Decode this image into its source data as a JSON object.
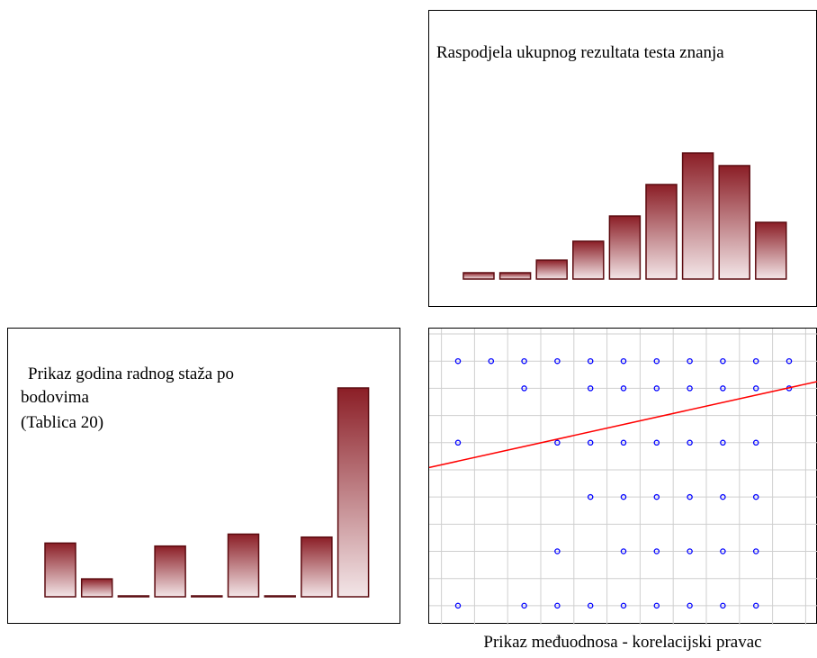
{
  "colors": {
    "bar_top": "#8b1e26",
    "bar_bottom": "#f3e6e8",
    "bar_stroke": "#5c0b10",
    "regression": "#ff0000",
    "points": "#0000ff",
    "grid": "#cfcfcf"
  },
  "chart_data": [
    {
      "id": "knowledge",
      "type": "bar",
      "title": "Raspodjela ukupnog rezultata testa znanja",
      "values": [
        1,
        1,
        3,
        6,
        10,
        15,
        20,
        18,
        9
      ],
      "ylim": [
        0,
        20
      ]
    },
    {
      "id": "experience",
      "type": "bar",
      "title_lines": [
        "Prikaz godina radnog staža po",
        "bodovima",
        "(Tablica 20)"
      ],
      "values": [
        18,
        6,
        0,
        17,
        0,
        21,
        0,
        20,
        70
      ],
      "ylim": [
        0,
        70
      ]
    },
    {
      "id": "correlation",
      "type": "scatter",
      "caption": "Prikaz međuodnosa - korelacijski pravac",
      "x_columns": [
        1,
        2,
        3,
        4,
        5,
        6,
        7,
        8,
        9,
        10,
        11
      ],
      "rows": [
        {
          "y": 9,
          "x": [
            1,
            2,
            3,
            4,
            5,
            6,
            7,
            8,
            9,
            10,
            11
          ]
        },
        {
          "y": 8,
          "x": [
            3,
            5,
            6,
            7,
            8,
            9,
            10,
            11
          ]
        },
        {
          "y": 6,
          "x": [
            1,
            4,
            5,
            6,
            7,
            8,
            9,
            10
          ]
        },
        {
          "y": 4,
          "x": [
            5,
            6,
            7,
            8,
            9,
            10
          ]
        },
        {
          "y": 2,
          "x": [
            4,
            6,
            7,
            8,
            9,
            10
          ]
        },
        {
          "y": 0,
          "x": [
            1,
            3,
            4,
            5,
            6,
            7,
            8,
            9,
            10
          ]
        }
      ],
      "regression": {
        "slope": 0.27,
        "intercept": 5.05
      },
      "xlim": [
        0,
        12
      ],
      "ylim": [
        -0.7,
        10.2
      ]
    }
  ]
}
